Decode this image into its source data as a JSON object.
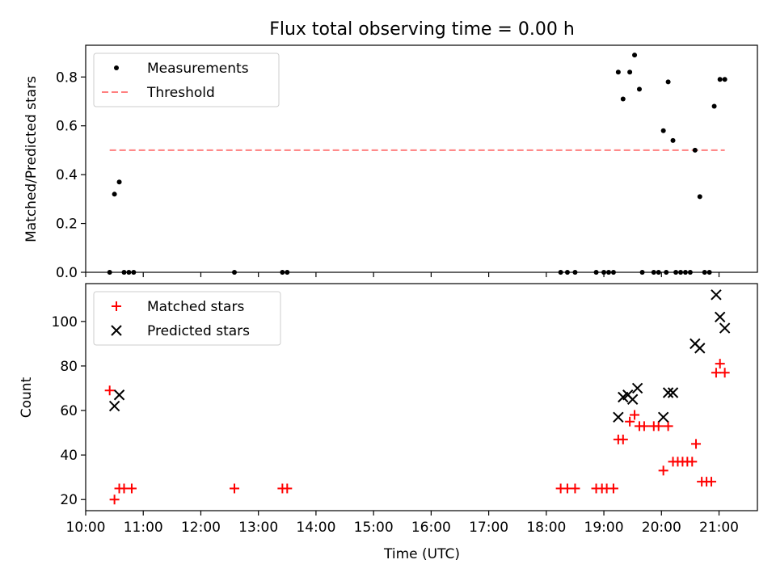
{
  "title": "Flux total observing time = 0.00 h",
  "xlabel": "Time (UTC)",
  "colors": {
    "measurements": "#000000",
    "threshold": "#ff7f7f",
    "matched": "#ff0000",
    "predicted": "#000000"
  },
  "chart_data": [
    {
      "type": "scatter",
      "ylabel": "Matched/Predicted stars",
      "xlim": [
        "10:00",
        "21:40"
      ],
      "ylim": [
        0,
        0.93
      ],
      "x_ticks": [
        "10:00",
        "11:00",
        "12:00",
        "13:00",
        "14:00",
        "15:00",
        "16:00",
        "17:00",
        "18:00",
        "19:00",
        "20:00",
        "21:00"
      ],
      "y_ticks": [
        "0.0",
        "0.2",
        "0.4",
        "0.6",
        "0.8"
      ],
      "legend": {
        "placement": "upper-left",
        "entries": [
          "Measurements",
          "Threshold"
        ]
      },
      "threshold": {
        "name": "Threshold",
        "value": 0.5,
        "x_range": [
          "10:25",
          "21:06"
        ]
      },
      "series": [
        {
          "name": "Measurements",
          "marker": "dot",
          "points": [
            [
              "10:25",
              0
            ],
            [
              "10:30",
              0.32
            ],
            [
              "10:35",
              0.37
            ],
            [
              "10:40",
              0
            ],
            [
              "10:45",
              0
            ],
            [
              "10:50",
              0
            ],
            [
              "12:35",
              0
            ],
            [
              "13:25",
              0
            ],
            [
              "13:30",
              0
            ],
            [
              "18:15",
              0
            ],
            [
              "18:22",
              0
            ],
            [
              "18:30",
              0
            ],
            [
              "18:52",
              0
            ],
            [
              "19:00",
              0
            ],
            [
              "19:05",
              0
            ],
            [
              "19:10",
              0
            ],
            [
              "19:15",
              0.82
            ],
            [
              "19:20",
              0.71
            ],
            [
              "19:27",
              0.82
            ],
            [
              "19:32",
              0.89
            ],
            [
              "19:37",
              0.75
            ],
            [
              "19:40",
              0
            ],
            [
              "19:52",
              0
            ],
            [
              "19:57",
              0
            ],
            [
              "20:02",
              0.58
            ],
            [
              "20:05",
              0
            ],
            [
              "20:07",
              0.78
            ],
            [
              "20:12",
              0.54
            ],
            [
              "20:15",
              0
            ],
            [
              "20:20",
              0
            ],
            [
              "20:25",
              0
            ],
            [
              "20:30",
              0
            ],
            [
              "20:35",
              0.5
            ],
            [
              "20:40",
              0.31
            ],
            [
              "20:45",
              0
            ],
            [
              "20:50",
              0
            ],
            [
              "20:55",
              0.68
            ],
            [
              "21:01",
              0.79
            ],
            [
              "21:06",
              0.79
            ]
          ]
        }
      ]
    },
    {
      "type": "scatter",
      "ylabel": "Count",
      "xlim": [
        "10:00",
        "21:40"
      ],
      "ylim": [
        15,
        117
      ],
      "x_ticks": [
        "10:00",
        "11:00",
        "12:00",
        "13:00",
        "14:00",
        "15:00",
        "16:00",
        "17:00",
        "18:00",
        "19:00",
        "20:00",
        "21:00"
      ],
      "y_ticks": [
        "20",
        "40",
        "60",
        "80",
        "100"
      ],
      "legend": {
        "placement": "upper-left",
        "entries": [
          "Matched stars",
          "Predicted stars"
        ]
      },
      "series": [
        {
          "name": "Matched stars",
          "marker": "plus",
          "points": [
            [
              "10:25",
              69
            ],
            [
              "10:30",
              20
            ],
            [
              "10:35",
              25
            ],
            [
              "10:40",
              25
            ],
            [
              "10:48",
              25
            ],
            [
              "12:35",
              25
            ],
            [
              "13:25",
              25
            ],
            [
              "13:30",
              25
            ],
            [
              "18:15",
              25
            ],
            [
              "18:22",
              25
            ],
            [
              "18:30",
              25
            ],
            [
              "18:52",
              25
            ],
            [
              "18:58",
              25
            ],
            [
              "19:03",
              25
            ],
            [
              "19:10",
              25
            ],
            [
              "19:15",
              47
            ],
            [
              "19:20",
              47
            ],
            [
              "19:27",
              55
            ],
            [
              "19:32",
              58
            ],
            [
              "19:37",
              53
            ],
            [
              "19:42",
              53
            ],
            [
              "19:52",
              53
            ],
            [
              "19:57",
              53
            ],
            [
              "20:02",
              33
            ],
            [
              "20:07",
              53
            ],
            [
              "20:12",
              37
            ],
            [
              "20:17",
              37
            ],
            [
              "20:22",
              37
            ],
            [
              "20:27",
              37
            ],
            [
              "20:32",
              37
            ],
            [
              "20:36",
              45
            ],
            [
              "20:42",
              28
            ],
            [
              "20:47",
              28
            ],
            [
              "20:52",
              28
            ],
            [
              "20:57",
              77
            ],
            [
              "21:01",
              81
            ],
            [
              "21:06",
              77
            ]
          ]
        },
        {
          "name": "Predicted stars",
          "marker": "x",
          "points": [
            [
              "10:30",
              62
            ],
            [
              "10:35",
              67
            ],
            [
              "19:15",
              57
            ],
            [
              "19:20",
              66
            ],
            [
              "19:25",
              67
            ],
            [
              "19:30",
              65
            ],
            [
              "19:35",
              70
            ],
            [
              "20:02",
              57
            ],
            [
              "20:07",
              68
            ],
            [
              "20:12",
              68
            ],
            [
              "20:35",
              90
            ],
            [
              "20:40",
              88
            ],
            [
              "20:57",
              112
            ],
            [
              "21:01",
              102
            ],
            [
              "21:06",
              97
            ]
          ]
        }
      ]
    }
  ]
}
